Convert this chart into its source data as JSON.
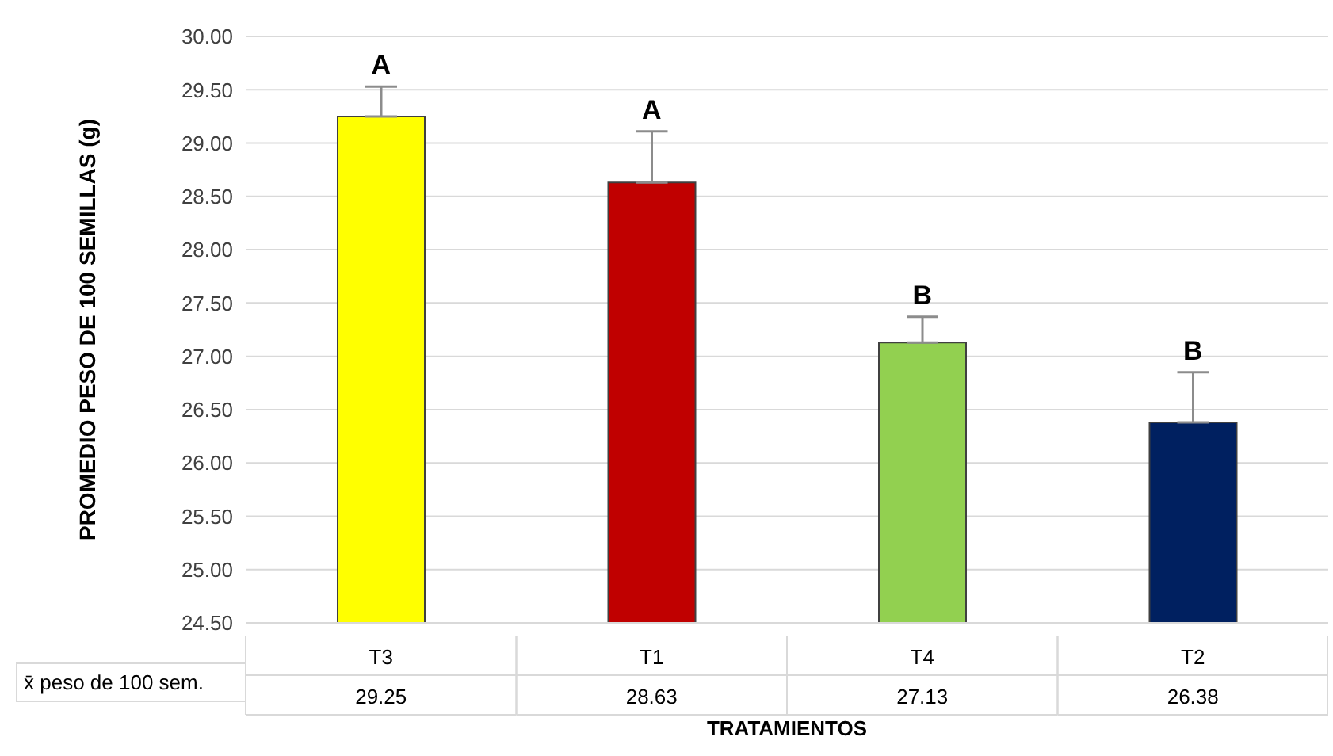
{
  "chart_data": {
    "type": "bar",
    "xlabel": "TRATAMIENTOS",
    "ylabel": "PROMEDIO PESO DE 100 SEMILLAS (g)",
    "categories": [
      "T3",
      "T1",
      "T4",
      "T2"
    ],
    "series": [
      {
        "name": "x̄ peso de 100 sem.",
        "colors": [
          "#ffff00",
          "#c00000",
          "#92d050",
          "#002060"
        ],
        "values": [
          29.25,
          28.63,
          27.13,
          26.38
        ],
        "errors": [
          [
            29.25,
            29.53
          ],
          [
            28.63,
            29.11
          ],
          [
            27.13,
            27.37
          ],
          [
            26.38,
            26.85
          ]
        ]
      }
    ],
    "data_labels": true,
    "ylim": [
      24.5,
      30
    ],
    "yticks": [
      {
        "value": 24.5,
        "label": "24.50"
      },
      {
        "value": 25,
        "label": "25.00"
      },
      {
        "value": 25.5,
        "label": "25.50"
      },
      {
        "value": 26,
        "label": "26.00"
      },
      {
        "value": 26.5,
        "label": "26.50"
      },
      {
        "value": 27,
        "label": "27.00"
      },
      {
        "value": 27.5,
        "label": "27.50"
      },
      {
        "value": 28,
        "label": "28.00"
      },
      {
        "value": 28.5,
        "label": "28.50"
      },
      {
        "value": 29,
        "label": "29.00"
      },
      {
        "value": 29.5,
        "label": "29.50"
      },
      {
        "value": 30,
        "label": "30.00"
      }
    ],
    "grid": "y",
    "annotations": [
      {
        "text": "A",
        "x": "T3",
        "y": 29.53
      },
      {
        "text": "A",
        "x": "T1",
        "y": 29.11
      },
      {
        "text": "B",
        "x": "T4",
        "y": 27.37
      },
      {
        "text": "B",
        "x": "T2",
        "y": 26.85
      }
    ]
  }
}
